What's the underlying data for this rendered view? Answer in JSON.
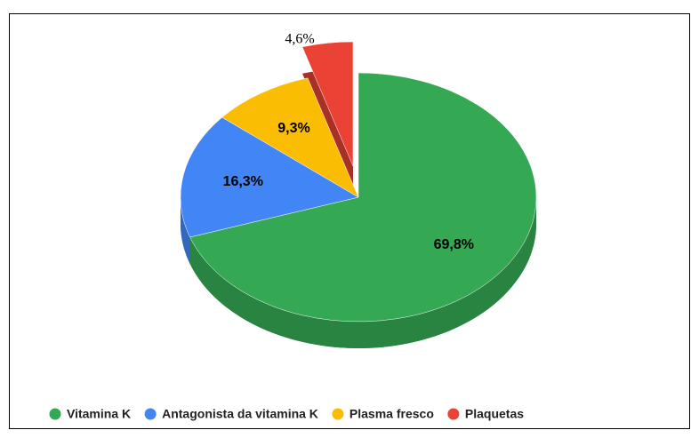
{
  "chart_data": {
    "type": "pie",
    "labels": [
      "Vitamina K",
      "Antagonista da vitamina K",
      "Plasma fresco",
      "Plaquetas"
    ],
    "values": [
      69.8,
      16.3,
      9.3,
      4.6
    ],
    "value_labels": [
      "69,8%",
      "16,3%",
      "9,3%",
      "4,6%"
    ],
    "colors": [
      "#34a853",
      "#4285f4",
      "#fbbc04",
      "#ea4335"
    ],
    "exploded": [
      "Plaquetas"
    ],
    "legend": "bottom"
  }
}
